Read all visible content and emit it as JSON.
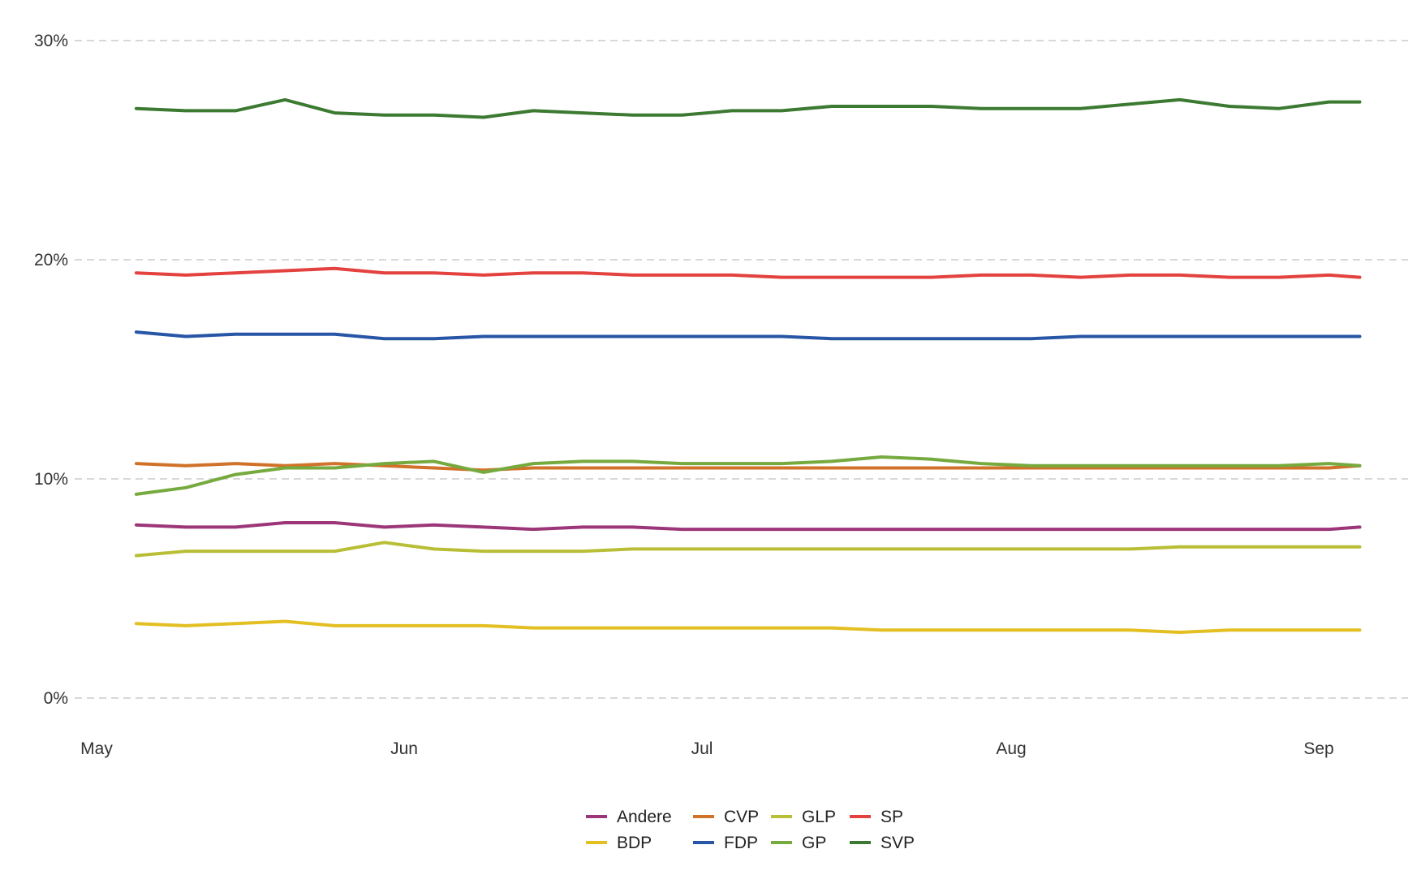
{
  "chart_data": {
    "type": "line",
    "title": "",
    "xlabel": "",
    "ylabel": "",
    "x_tick_labels": [
      "May",
      "Jun",
      "Jul",
      "Aug",
      "Sep"
    ],
    "y_ticks": [
      0,
      10,
      20,
      30
    ],
    "y_tick_labels": [
      "0%",
      "10%",
      "20%",
      "30%"
    ],
    "ylim": [
      0,
      30
    ],
    "grid": "horizontal dashed",
    "legend_position": "bottom-center",
    "x_dates": [
      "May 5",
      "May 10",
      "May 15",
      "May 20",
      "May 25",
      "May 30",
      "Jun 4",
      "Jun 9",
      "Jun 14",
      "Jun 19",
      "Jun 24",
      "Jun 29",
      "Jul 4",
      "Jul 9",
      "Jul 14",
      "Jul 19",
      "Jul 24",
      "Jul 29",
      "Aug 3",
      "Aug 8",
      "Aug 13",
      "Aug 18",
      "Aug 23",
      "Aug 28",
      "Sep 2",
      "Sep 5"
    ],
    "series": [
      {
        "name": "Andere",
        "color": "#9c3679",
        "values": [
          7.9,
          7.8,
          7.8,
          8.0,
          8.0,
          7.8,
          7.9,
          7.8,
          7.7,
          7.8,
          7.8,
          7.7,
          7.7,
          7.7,
          7.7,
          7.7,
          7.7,
          7.7,
          7.7,
          7.7,
          7.7,
          7.7,
          7.7,
          7.7,
          7.7,
          7.8
        ]
      },
      {
        "name": "BDP",
        "color": "#e3bf22",
        "values": [
          3.4,
          3.3,
          3.4,
          3.5,
          3.3,
          3.3,
          3.3,
          3.3,
          3.2,
          3.2,
          3.2,
          3.2,
          3.2,
          3.2,
          3.2,
          3.1,
          3.1,
          3.1,
          3.1,
          3.1,
          3.1,
          3.0,
          3.1,
          3.1,
          3.1,
          3.1
        ]
      },
      {
        "name": "CVP",
        "color": "#d07229",
        "values": [
          10.7,
          10.6,
          10.7,
          10.6,
          10.7,
          10.6,
          10.5,
          10.4,
          10.5,
          10.5,
          10.5,
          10.5,
          10.5,
          10.5,
          10.5,
          10.5,
          10.5,
          10.5,
          10.5,
          10.5,
          10.5,
          10.5,
          10.5,
          10.5,
          10.5,
          10.6
        ]
      },
      {
        "name": "FDP",
        "color": "#2856a6",
        "values": [
          16.7,
          16.5,
          16.6,
          16.6,
          16.6,
          16.4,
          16.4,
          16.5,
          16.5,
          16.5,
          16.5,
          16.5,
          16.5,
          16.5,
          16.4,
          16.4,
          16.4,
          16.4,
          16.4,
          16.5,
          16.5,
          16.5,
          16.5,
          16.5,
          16.5,
          16.5
        ]
      },
      {
        "name": "GLP",
        "color": "#b8bf36",
        "values": [
          6.5,
          6.7,
          6.7,
          6.7,
          6.7,
          7.1,
          6.8,
          6.7,
          6.7,
          6.7,
          6.8,
          6.8,
          6.8,
          6.8,
          6.8,
          6.8,
          6.8,
          6.8,
          6.8,
          6.8,
          6.8,
          6.9,
          6.9,
          6.9,
          6.9,
          6.9
        ]
      },
      {
        "name": "GP",
        "color": "#76aa3f",
        "values": [
          9.3,
          9.6,
          10.2,
          10.5,
          10.5,
          10.7,
          10.8,
          10.3,
          10.7,
          10.8,
          10.8,
          10.7,
          10.7,
          10.7,
          10.8,
          11.0,
          10.9,
          10.7,
          10.6,
          10.6,
          10.6,
          10.6,
          10.6,
          10.6,
          10.7,
          10.6
        ]
      },
      {
        "name": "SP",
        "color": "#e3423f",
        "values": [
          19.4,
          19.3,
          19.4,
          19.5,
          19.6,
          19.4,
          19.4,
          19.3,
          19.4,
          19.4,
          19.3,
          19.3,
          19.3,
          19.2,
          19.2,
          19.2,
          19.2,
          19.3,
          19.3,
          19.2,
          19.3,
          19.3,
          19.2,
          19.2,
          19.3,
          19.2
        ]
      },
      {
        "name": "SVP",
        "color": "#3c7a32",
        "values": [
          26.9,
          26.8,
          26.8,
          27.3,
          26.7,
          26.6,
          26.6,
          26.5,
          26.8,
          26.7,
          26.6,
          26.6,
          26.8,
          26.8,
          27.0,
          27.0,
          27.0,
          26.9,
          26.9,
          26.9,
          27.1,
          27.3,
          27.0,
          26.9,
          27.2,
          27.2
        ]
      }
    ]
  }
}
